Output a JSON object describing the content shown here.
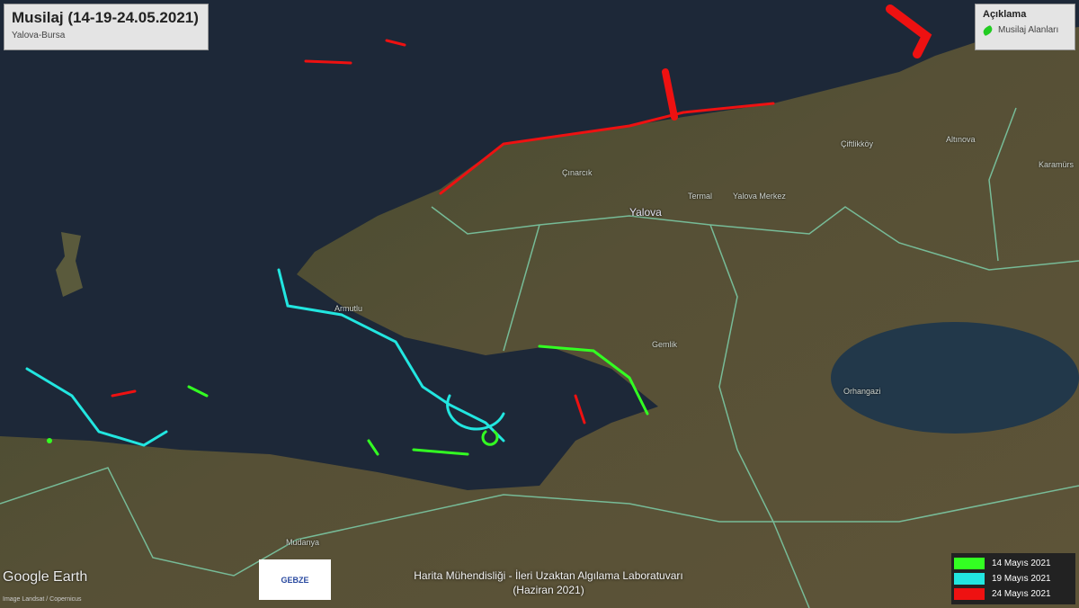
{
  "title": "Musilaj (14-19-24.05.2021)",
  "subtitle": "Yalova-Bursa",
  "legend": {
    "title": "Açıklama",
    "item": "Musilaj Alanları",
    "item_color": "#22cc22"
  },
  "places": {
    "cinarcik": "Çınarcık",
    "termal": "Termal",
    "yalova": "Yalova",
    "yalova_merkez": "Yalova Merkez",
    "ciftlikkoy": "Çiftlikköy",
    "altinova": "Altınova",
    "karamursel": "Karamürs",
    "armutlu": "Armutlu",
    "gemlik": "Gemlik",
    "orhangazi": "Orhangazi",
    "mudanya": "Mudanya"
  },
  "watermark": "Google Earth",
  "credit": "Image Landsat / Copernicus",
  "logo": "GEBZE",
  "lab": {
    "line1": "Harita Mühendisliği - İleri Uzaktan Algılama Laboratuvarı",
    "line2": "(Haziran 2021)"
  },
  "dates": [
    {
      "label": "14 Mayıs 2021",
      "color": "#33ff22"
    },
    {
      "label": "19 Mayıs 2021",
      "color": "#22e6e0"
    },
    {
      "label": "24 Mayıs 2021",
      "color": "#ee1111"
    }
  ]
}
